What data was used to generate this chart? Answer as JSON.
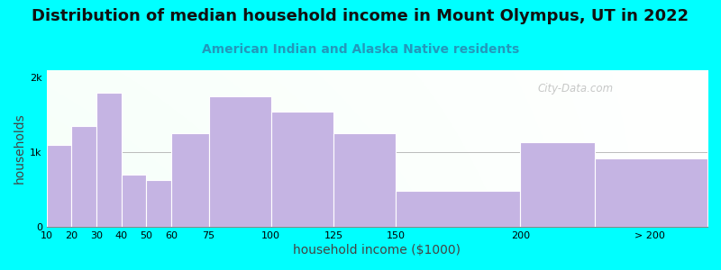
{
  "title": "Distribution of median household income in Mount Olympus, UT in 2022",
  "subtitle": "American Indian and Alaska Native residents",
  "xlabel": "household income ($1000)",
  "ylabel": "households",
  "background_color": "#00FFFF",
  "bar_color": "#C5B4E3",
  "bar_edge_color": "#FFFFFF",
  "bin_lefts": [
    10,
    20,
    30,
    40,
    50,
    60,
    75,
    100,
    125,
    150,
    200,
    230
  ],
  "bin_widths": [
    10,
    10,
    10,
    10,
    10,
    15,
    25,
    25,
    25,
    50,
    30,
    45
  ],
  "values": [
    1100,
    1350,
    1800,
    700,
    630,
    1250,
    1750,
    1550,
    1250,
    480,
    1130,
    920
  ],
  "xtick_positions": [
    10,
    20,
    30,
    40,
    50,
    60,
    75,
    100,
    125,
    150,
    200,
    252
  ],
  "xtick_labels": [
    "10",
    "20",
    "30",
    "40",
    "50",
    "60",
    "75",
    "100",
    "125",
    "150",
    "200",
    "> 200"
  ],
  "xlim": [
    10,
    275
  ],
  "ylim": [
    0,
    2100
  ],
  "yticks": [
    0,
    1000,
    2000
  ],
  "ytick_labels": [
    "0",
    "1k",
    "2k"
  ],
  "title_fontsize": 13,
  "subtitle_fontsize": 10,
  "axis_label_fontsize": 10,
  "watermark_text": "City-Data.com"
}
